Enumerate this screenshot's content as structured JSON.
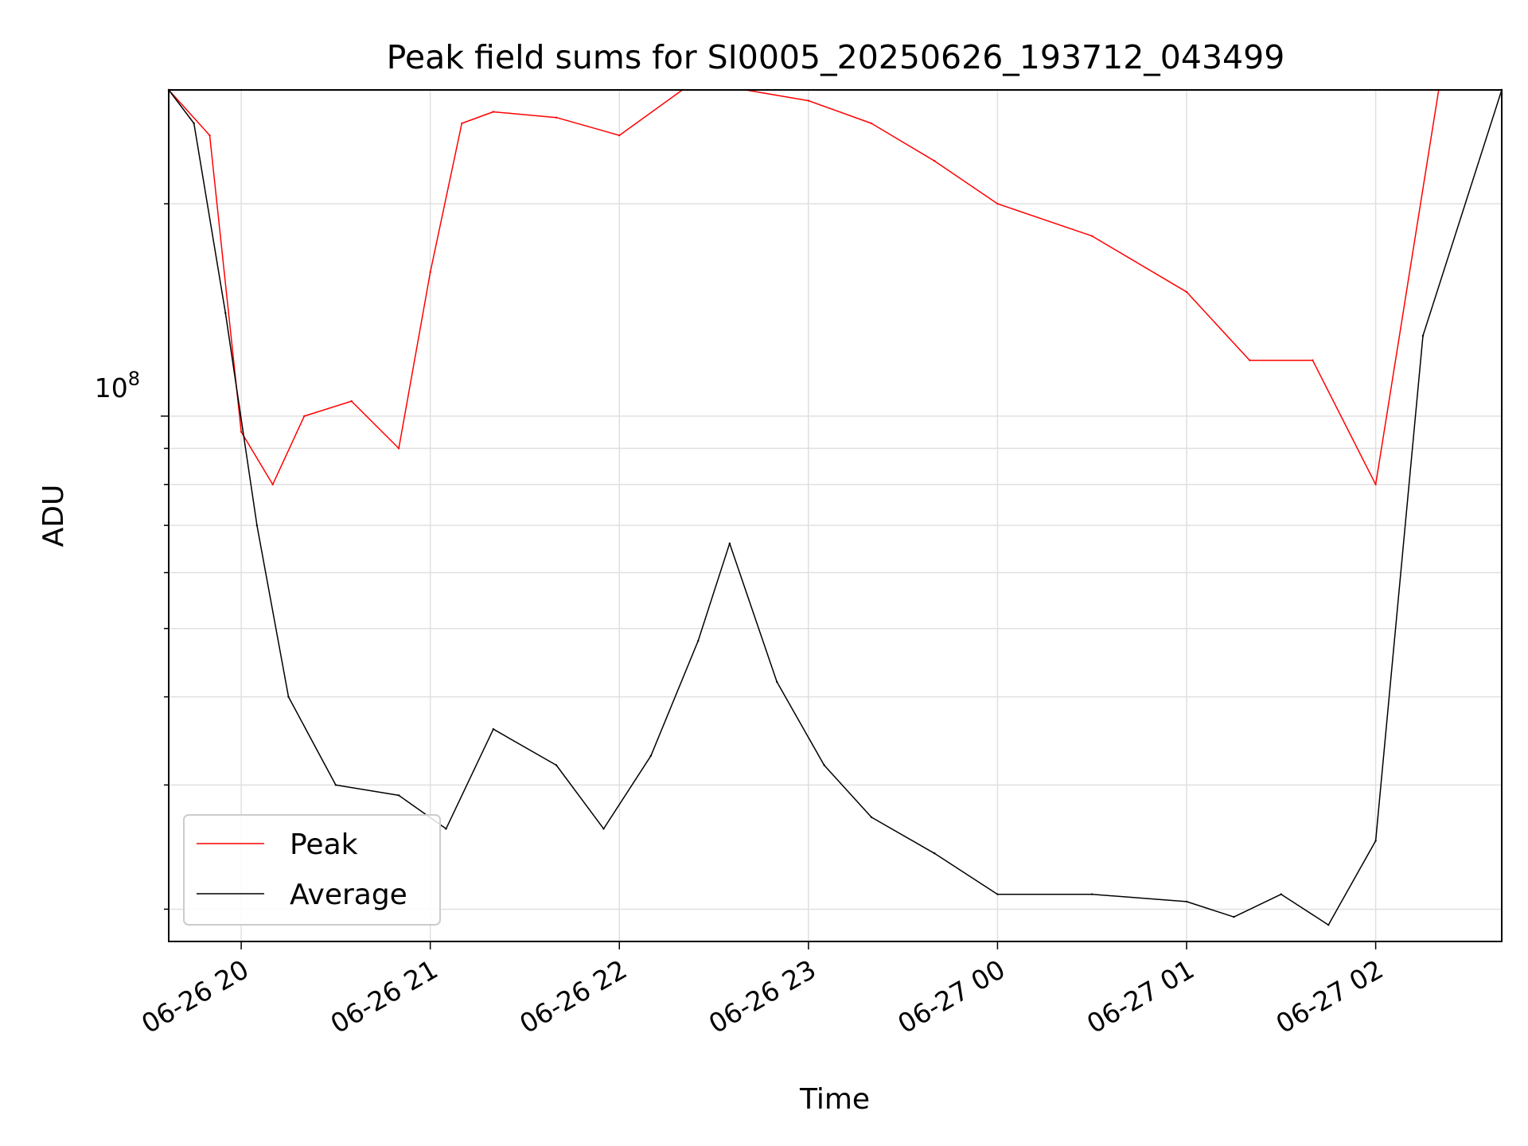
{
  "chart_data": {
    "type": "line",
    "title": "Peak field sums for SI0005_20250626_193712_043499",
    "xlabel": "Time",
    "ylabel": "ADU",
    "yscale": "log",
    "ylim": [
      18000000,
      290000000
    ],
    "xlim": [
      "2025-06-26 19:37",
      "2025-06-27 02:40"
    ],
    "x_ticks": [
      "06-26 20",
      "06-26 21",
      "06-26 22",
      "06-26 23",
      "06-27 00",
      "06-27 01",
      "06-27 02"
    ],
    "y_major_ticks": [
      {
        "label_base": "10",
        "label_exp": "8",
        "value": 100000000
      }
    ],
    "y_minor_ticks": [
      20000000,
      30000000,
      40000000,
      50000000,
      60000000,
      70000000,
      80000000,
      90000000,
      200000000
    ],
    "grid": true,
    "legend": {
      "placement": "bottom-left",
      "entries": [
        "Peak",
        "Average"
      ]
    },
    "series": [
      {
        "name": "Peak",
        "color": "#ff0000",
        "x": [
          "2025-06-26 19:37",
          "2025-06-26 19:50",
          "2025-06-26 20:00",
          "2025-06-26 20:10",
          "2025-06-26 20:20",
          "2025-06-26 20:35",
          "2025-06-26 20:50",
          "2025-06-26 21:00",
          "2025-06-26 21:10",
          "2025-06-26 21:20",
          "2025-06-26 21:40",
          "2025-06-26 22:00",
          "2025-06-26 22:20",
          "2025-06-26 22:40",
          "2025-06-26 23:00",
          "2025-06-26 23:20",
          "2025-06-26 23:40",
          "2025-06-27 00:00",
          "2025-06-27 00:30",
          "2025-06-27 01:00",
          "2025-06-27 01:20",
          "2025-06-27 01:40",
          "2025-06-27 02:00",
          "2025-06-27 02:20",
          "2025-06-27 02:40"
        ],
        "y": [
          290000000,
          250000000,
          95000000,
          80000000,
          100000000,
          105000000,
          90000000,
          160000000,
          260000000,
          270000000,
          265000000,
          250000000,
          290000000,
          290000000,
          280000000,
          260000000,
          230000000,
          200000000,
          180000000,
          150000000,
          120000000,
          120000000,
          80000000,
          290000000,
          290000000
        ]
      },
      {
        "name": "Average",
        "color": "#000000",
        "x": [
          "2025-06-26 19:37",
          "2025-06-26 19:45",
          "2025-06-26 19:55",
          "2025-06-26 20:05",
          "2025-06-26 20:15",
          "2025-06-26 20:30",
          "2025-06-26 20:50",
          "2025-06-26 21:05",
          "2025-06-26 21:20",
          "2025-06-26 21:40",
          "2025-06-26 21:55",
          "2025-06-26 22:10",
          "2025-06-26 22:25",
          "2025-06-26 22:35",
          "2025-06-26 22:50",
          "2025-06-26 23:05",
          "2025-06-26 23:20",
          "2025-06-26 23:40",
          "2025-06-27 00:00",
          "2025-06-27 00:30",
          "2025-06-27 01:00",
          "2025-06-27 01:15",
          "2025-06-27 01:30",
          "2025-06-27 01:45",
          "2025-06-27 02:00",
          "2025-06-27 02:15",
          "2025-06-27 02:40"
        ],
        "y": [
          290000000,
          260000000,
          140000000,
          70000000,
          40000000,
          30000000,
          29000000,
          26000000,
          36000000,
          32000000,
          26000000,
          33000000,
          48000000,
          66000000,
          42000000,
          32000000,
          27000000,
          24000000,
          21000000,
          21000000,
          20500000,
          19500000,
          21000000,
          19000000,
          25000000,
          130000000,
          290000000
        ]
      }
    ]
  }
}
